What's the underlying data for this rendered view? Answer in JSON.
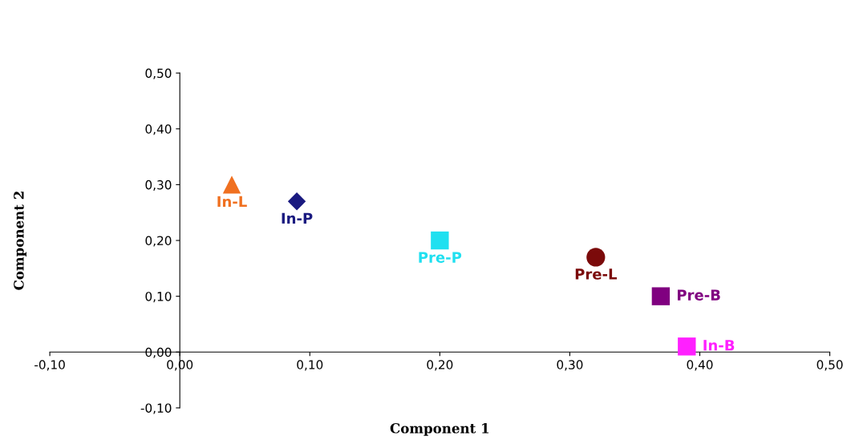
{
  "chart_data": {
    "type": "scatter",
    "xlabel": "Component 1",
    "ylabel": "Component 2",
    "xlim": [
      -0.1,
      0.5
    ],
    "ylim": [
      -0.1,
      0.5
    ],
    "xticks": [
      {
        "value": -0.1,
        "label": "-0,10"
      },
      {
        "value": 0,
        "label": "0,00"
      },
      {
        "value": 0.1,
        "label": "0,10"
      },
      {
        "value": 0.2,
        "label": "0,20"
      },
      {
        "value": 0.3,
        "label": "0,30"
      },
      {
        "value": 0.4,
        "label": "0,40"
      },
      {
        "value": 0.5,
        "label": "0,50"
      }
    ],
    "yticks": [
      {
        "value": -0.1,
        "label": "-0,10"
      },
      {
        "value": 0,
        "label": "0,00"
      },
      {
        "value": 0.1,
        "label": "0,10"
      },
      {
        "value": 0.2,
        "label": "0,20"
      },
      {
        "value": 0.3,
        "label": "0,30"
      },
      {
        "value": 0.4,
        "label": "0,40"
      },
      {
        "value": 0.5,
        "label": "0,50"
      }
    ],
    "grid": false,
    "legend": false,
    "series": [
      {
        "name": "In-L",
        "color": "#f07020",
        "marker": "triangle",
        "x": [
          0.04
        ],
        "values": [
          0.3
        ]
      },
      {
        "name": "In-P",
        "color": "#1a1a80",
        "marker": "diamond",
        "x": [
          0.09
        ],
        "values": [
          0.27
        ]
      },
      {
        "name": "Pre-P",
        "color": "#20e0f0",
        "marker": "square",
        "x": [
          0.2
        ],
        "values": [
          0.2
        ]
      },
      {
        "name": "Pre-L",
        "color": "#7b0a0a",
        "marker": "circle",
        "x": [
          0.32
        ],
        "values": [
          0.17
        ]
      },
      {
        "name": "Pre-B",
        "color": "#800080",
        "marker": "square",
        "x": [
          0.37
        ],
        "values": [
          0.1
        ]
      },
      {
        "name": "In-B",
        "color": "#ff20ff",
        "marker": "square",
        "x": [
          0.39
        ],
        "values": [
          0.01
        ]
      }
    ]
  }
}
